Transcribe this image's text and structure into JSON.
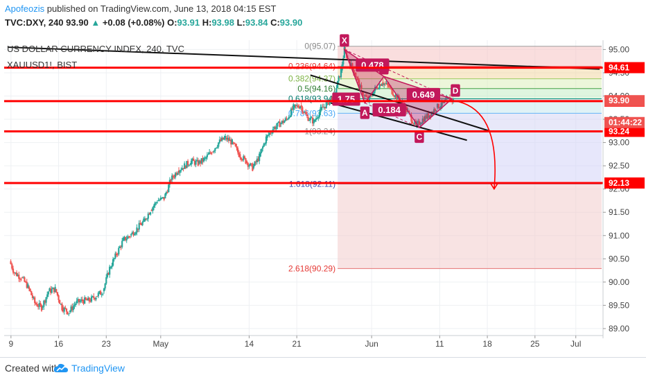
{
  "header": {
    "author": "Apofeozis",
    "published": "published on TradingView.com, June 13, 2018 04:15 EST",
    "symbol": "TVC:DXY, 240",
    "last": "93.90",
    "change": "+0.08 (+0.08%)",
    "open_label": "O:",
    "open": "93.91",
    "high_label": "H:",
    "high": "93.98",
    "low_label": "L:",
    "low": "93.84",
    "close_label": "C:",
    "close": "93.90"
  },
  "legend": {
    "title": "US DOLLAR CURRENCY INDEX, 240, TVC",
    "overlay": "XAUUSD1!, BIST"
  },
  "footer": {
    "created": "Created with",
    "brand": "TradingView"
  },
  "colors": {
    "bull": "#26a69a",
    "bear": "#ef5350",
    "level": "#ff0000",
    "pattern": "#c2185b",
    "brand": "#2196f3"
  },
  "chart_data": {
    "type": "candlestick",
    "ylim": [
      88.85,
      95.2
    ],
    "y_ticks": [
      89.0,
      89.5,
      90.0,
      90.5,
      91.0,
      91.5,
      92.0,
      92.5,
      93.0,
      93.5,
      94.0,
      94.5,
      95.0
    ],
    "y_tick_labels": [
      "89.00",
      "89.50",
      "90.00",
      "90.50",
      "91.00",
      "91.50",
      "92.00",
      "92.50",
      "93.00",
      "93.50",
      "94.00",
      "94.50",
      "95.00"
    ],
    "x_ticks": [
      {
        "label": "9",
        "day": 9
      },
      {
        "label": "16",
        "day": 16
      },
      {
        "label": "23",
        "day": 23
      },
      {
        "label": "May",
        "day": 31
      },
      {
        "label": "14",
        "day": 44
      },
      {
        "label": "21",
        "day": 51
      },
      {
        "label": "Jun",
        "day": 62
      },
      {
        "label": "11",
        "day": 72
      },
      {
        "label": "18",
        "day": 79
      },
      {
        "label": "25",
        "day": 86
      },
      {
        "label": "Jul",
        "day": 92
      }
    ],
    "price_path": [
      [
        8.8,
        90.45
      ],
      [
        9.5,
        90.2
      ],
      [
        10.5,
        90.1
      ],
      [
        11.5,
        89.9
      ],
      [
        12.5,
        89.55
      ],
      [
        13.5,
        89.45
      ],
      [
        14.5,
        89.8
      ],
      [
        15.5,
        89.85
      ],
      [
        16.5,
        89.45
      ],
      [
        17.5,
        89.35
      ],
      [
        18.5,
        89.55
      ],
      [
        19.5,
        89.6
      ],
      [
        20.5,
        89.6
      ],
      [
        21.5,
        89.7
      ],
      [
        22.5,
        89.8
      ],
      [
        23.5,
        90.3
      ],
      [
        24.5,
        90.6
      ],
      [
        25.5,
        90.9
      ],
      [
        26.5,
        91.0
      ],
      [
        27.5,
        91.15
      ],
      [
        28.5,
        91.3
      ],
      [
        29.5,
        91.55
      ],
      [
        30.5,
        91.75
      ],
      [
        31.5,
        91.8
      ],
      [
        32.5,
        92.2
      ],
      [
        33.5,
        92.4
      ],
      [
        34.5,
        92.5
      ],
      [
        35.5,
        92.6
      ],
      [
        36.5,
        92.55
      ],
      [
        37.5,
        92.65
      ],
      [
        38.5,
        92.8
      ],
      [
        39.5,
        93.0
      ],
      [
        40.5,
        93.1
      ],
      [
        41.5,
        93.0
      ],
      [
        42.5,
        92.75
      ],
      [
        43.5,
        92.6
      ],
      [
        44.5,
        92.45
      ],
      [
        45.5,
        92.7
      ],
      [
        46.5,
        93.1
      ],
      [
        47.5,
        93.3
      ],
      [
        48.5,
        93.4
      ],
      [
        49.5,
        93.5
      ],
      [
        50.5,
        93.75
      ],
      [
        51.5,
        93.8
      ],
      [
        52.5,
        93.55
      ],
      [
        53.5,
        93.45
      ],
      [
        54.5,
        93.7
      ],
      [
        55.5,
        93.85
      ],
      [
        56.5,
        94.0
      ],
      [
        57.5,
        94.55
      ],
      [
        58.0,
        95.0
      ],
      [
        58.5,
        94.8
      ],
      [
        59.5,
        94.5
      ],
      [
        60.5,
        94.1
      ],
      [
        61.5,
        93.9
      ],
      [
        62.5,
        94.15
      ],
      [
        63.5,
        94.3
      ],
      [
        64.5,
        94.2
      ],
      [
        65.5,
        94.0
      ],
      [
        66.5,
        93.85
      ],
      [
        67.5,
        93.6
      ],
      [
        68.5,
        93.35
      ],
      [
        69.5,
        93.5
      ],
      [
        70.5,
        93.6
      ],
      [
        71.5,
        93.75
      ],
      [
        72.5,
        93.85
      ],
      [
        73.5,
        93.95
      ],
      [
        74.0,
        93.9
      ]
    ],
    "horizontal_levels": [
      {
        "price": 94.61,
        "label": "94.61"
      },
      {
        "price": 93.89,
        "label": "93.89"
      },
      {
        "price": 93.24,
        "label": "93.24"
      },
      {
        "price": 92.13,
        "label": "92.13"
      }
    ],
    "last_price": {
      "price": 93.9,
      "label": "93.90"
    },
    "countdown": {
      "price": 93.43,
      "label": "01:44:22"
    },
    "fib_levels": [
      {
        "ratio_label": "0(95.07)",
        "price": 95.07
      },
      {
        "ratio_label": "0.236(94.64)",
        "price": 94.64
      },
      {
        "ratio_label": "0.382(94.37)",
        "price": 94.37
      },
      {
        "ratio_label": "0.5(94.16)",
        "price": 94.16
      },
      {
        "ratio_label": "0.618(93.94)",
        "price": 93.94
      },
      {
        "ratio_label": "0.786(93.63)",
        "price": 93.63
      },
      {
        "ratio_label": "1(93.24)",
        "price": 93.24
      },
      {
        "ratio_label": "1.618(92.11)",
        "price": 92.11
      },
      {
        "ratio_label": "2.618(90.29)",
        "price": 90.29
      }
    ],
    "harmonic_points": [
      {
        "label": "X",
        "day": 58.0,
        "price": 95.0
      },
      {
        "label": "A",
        "day": 61.0,
        "price": 93.85
      },
      {
        "label": "B",
        "day": 63.8,
        "price": 94.42
      },
      {
        "label": "C",
        "day": 69.0,
        "price": 93.32
      },
      {
        "label": "D",
        "day": 73.8,
        "price": 93.94
      }
    ],
    "harmonic_ratios": [
      "0.478",
      "0.184",
      "0.649",
      "1.75"
    ],
    "trendlines": [
      {
        "from": [
          8.5,
          95.05
        ],
        "to": [
          95.5,
          94.58
        ]
      },
      {
        "from": [
          53.0,
          94.45
        ],
        "to": [
          79.5,
          93.24
        ]
      },
      {
        "from": [
          56.0,
          93.85
        ],
        "to": [
          76.0,
          93.05
        ]
      }
    ],
    "projection": {
      "from_day": 74.0,
      "from_price": 93.9,
      "to_day": 80.0,
      "to_price": 92.0
    }
  }
}
